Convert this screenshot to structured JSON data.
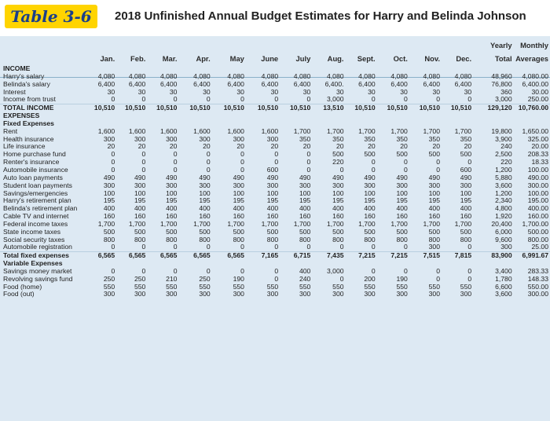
{
  "header": {
    "label": "Table 3-6",
    "title": "2018 Unfinished Annual Budget Estimates for Harry and Belinda Johnson"
  },
  "columns": {
    "months": [
      "Jan.",
      "Feb.",
      "Mar.",
      "Apr.",
      "May",
      "June",
      "July",
      "Aug.",
      "Sept.",
      "Oct.",
      "Nov.",
      "Dec."
    ],
    "yearly_top": "Yearly",
    "yearly_bottom": "Total",
    "monthly_top": "Monthly",
    "monthly_bottom": "Averages"
  },
  "rows": [
    {
      "label": "INCOME",
      "type": "sec",
      "cells": []
    },
    {
      "label": "Harry's salary",
      "cells": [
        "4,080",
        "4,080",
        "4,080",
        "4,080",
        "4,080",
        "4,080",
        "4,080",
        "4,080",
        "4,080",
        "4,080",
        "4,080",
        "4,080",
        "48,960",
        "4,080.00"
      ]
    },
    {
      "label": "Belinda's salary",
      "cells": [
        "6,400",
        "6,400",
        "6,400",
        "6,400",
        "6,400",
        "6,400",
        "6,400",
        "6,400.",
        "6,400",
        "6,400",
        "6,400",
        "6,400",
        "76,800",
        "6,400.00"
      ]
    },
    {
      "label": "Interest",
      "cells": [
        "30",
        "30",
        "30",
        "30",
        "30",
        "30",
        "30",
        "30",
        "30",
        "30",
        "30",
        "30",
        "360",
        "30.00"
      ]
    },
    {
      "label": "Income from trust",
      "cells": [
        "0",
        "0",
        "0",
        "0",
        "0",
        "0",
        "0",
        "3,000",
        "0",
        "0",
        "0",
        "0",
        "3,000",
        "250.00"
      ]
    },
    {
      "label": "TOTAL INCOME",
      "type": "total",
      "cells": [
        "10,510",
        "10,510",
        "10,510",
        "10,510",
        "10,510",
        "10,510",
        "10,510",
        "13,510",
        "10,510",
        "10,510",
        "10,510",
        "10,510",
        "129,120",
        "10,760.00"
      ]
    },
    {
      "label": "EXPENSES",
      "type": "sec",
      "cells": []
    },
    {
      "label": "Fixed Expenses",
      "type": "sec",
      "cells": []
    },
    {
      "label": "Rent",
      "cells": [
        "1,600",
        "1,600",
        "1,600",
        "1,600",
        "1,600",
        "1,600",
        "1,700",
        "1,700",
        "1,700",
        "1,700",
        "1,700",
        "1,700",
        "19,800",
        "1,650.00"
      ]
    },
    {
      "label": "Health insurance",
      "cells": [
        "300",
        "300",
        "300",
        "300",
        "300",
        "300",
        "350",
        "350",
        "350",
        "350",
        "350",
        "350",
        "3,900",
        "325.00"
      ]
    },
    {
      "label": "Life insurance",
      "cells": [
        "20",
        "20",
        "20",
        "20",
        "20",
        "20",
        "20",
        "20",
        "20",
        "20",
        "20",
        "20",
        "240",
        "20.00"
      ]
    },
    {
      "label": "Home purchase fund",
      "cells": [
        "0",
        "0",
        "0",
        "0",
        "0",
        "0",
        "0",
        "500",
        "500",
        "500",
        "500",
        "500",
        "2,500",
        "208.33"
      ]
    },
    {
      "label": "Renter's insurance",
      "cells": [
        "0",
        "0",
        "0",
        "0",
        "0",
        "0",
        "0",
        "220",
        "0",
        "0",
        "0",
        "0",
        "220",
        "18.33"
      ]
    },
    {
      "label": "Automobile insurance",
      "cells": [
        "0",
        "0",
        "0",
        "0",
        "0",
        "600",
        "0",
        "0",
        "0",
        "0",
        "0",
        "600",
        "1,200",
        "100.00"
      ]
    },
    {
      "label": "Auto loan payments",
      "cells": [
        "490",
        "490",
        "490",
        "490",
        "490",
        "490",
        "490",
        "490",
        "490",
        "490",
        "490",
        "490",
        "5,880",
        "490.00"
      ]
    },
    {
      "label": "Student loan payments",
      "cells": [
        "300",
        "300",
        "300",
        "300",
        "300",
        "300",
        "300",
        "300",
        "300",
        "300",
        "300",
        "300",
        "3,600",
        "300.00"
      ]
    },
    {
      "label": "Savings/emergencies",
      "cells": [
        "100",
        "100",
        "100",
        "100",
        "100",
        "100",
        "100",
        "100",
        "100",
        "100",
        "100",
        "100",
        "1,200",
        "100.00"
      ]
    },
    {
      "label": "Harry's retirement plan",
      "cells": [
        "195",
        "195",
        "195",
        "195",
        "195",
        "195",
        "195",
        "195",
        "195",
        "195",
        "195",
        "195",
        "2,340",
        "195.00"
      ]
    },
    {
      "label": "Belinda's retirement plan",
      "cells": [
        "400",
        "400",
        "400",
        "400",
        "400",
        "400",
        "400",
        "400",
        "400",
        "400",
        "400",
        "400",
        "4,800",
        "400.00"
      ]
    },
    {
      "label": "Cable TV and internet",
      "cells": [
        "160",
        "160",
        "160",
        "160",
        "160",
        "160",
        "160",
        "160",
        "160",
        "160",
        "160",
        "160",
        "1,920",
        "160.00"
      ]
    },
    {
      "label": "Federal income taxes",
      "cells": [
        "1,700",
        "1,700",
        "1,700",
        "1,700",
        "1,700",
        "1,700",
        "1,700",
        "1,700",
        "1,700",
        "1,700",
        "1,700",
        "1,700",
        "20,400",
        "1,700.00"
      ]
    },
    {
      "label": "State income taxes",
      "cells": [
        "500",
        "500",
        "500",
        "500",
        "500",
        "500",
        "500",
        "500",
        "500",
        "500",
        "500",
        "500",
        "6,000",
        "500.00"
      ]
    },
    {
      "label": "Social security taxes",
      "cells": [
        "800",
        "800",
        "800",
        "800",
        "800",
        "800",
        "800",
        "800",
        "800",
        "800",
        "800",
        "800",
        "9,600",
        "800.00"
      ]
    },
    {
      "label": "Automobile registration",
      "cells": [
        "0",
        "0",
        "0",
        "0",
        "0",
        "0",
        "0",
        "0",
        "0",
        "0",
        "300",
        "0",
        "300",
        "25.00"
      ]
    },
    {
      "label": "Total fixed expenses",
      "type": "total",
      "cells": [
        "6,565",
        "6,565",
        "6,565",
        "6,565",
        "6,565",
        "7,165",
        "6,715",
        "7,435",
        "7,215",
        "7,215",
        "7,515",
        "7,815",
        "83,900",
        "6,991.67"
      ]
    },
    {
      "label": "Variable Expenses",
      "type": "sec",
      "cells": []
    },
    {
      "label": "Savings money market",
      "cells": [
        "0",
        "0",
        "0",
        "0",
        "0",
        "0",
        "400",
        "3,000",
        "0",
        "0",
        "0",
        "0",
        "3,400",
        "283.33"
      ]
    },
    {
      "label": "Revolving savings fund",
      "cells": [
        "250",
        "250",
        "210",
        "250",
        "190",
        "0",
        "240",
        "0",
        "200",
        "190",
        "0",
        "0",
        "1,780",
        "148.33"
      ]
    },
    {
      "label": "Food (home)",
      "cells": [
        "550",
        "550",
        "550",
        "550",
        "550",
        "550",
        "550",
        "550",
        "550",
        "550",
        "550",
        "550",
        "6,600",
        "550.00"
      ]
    },
    {
      "label": "Food (out)",
      "cells": [
        "300",
        "300",
        "300",
        "300",
        "300",
        "300",
        "300",
        "300",
        "300",
        "300",
        "300",
        "300",
        "3,600",
        "300.00"
      ]
    }
  ]
}
